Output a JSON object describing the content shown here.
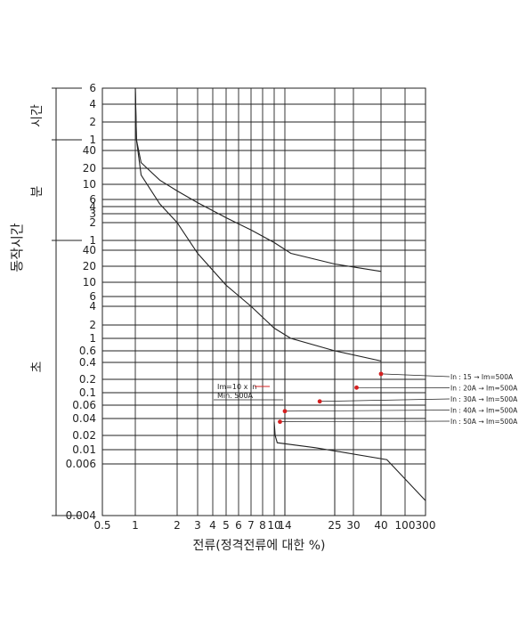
{
  "chart_data": {
    "type": "line",
    "xscale": "log",
    "yscale": "log",
    "xlabel": "전류(정격전류에 대한 %)",
    "ylabel": "동작시간",
    "y_group_labels": [
      "시간",
      "분",
      "초"
    ],
    "x_ticks": [
      "0.5",
      "1",
      "2",
      "3",
      "4",
      "5",
      "6",
      "7",
      "8",
      "10",
      "14",
      "25",
      "30",
      "40",
      "100",
      "300"
    ],
    "y_ticks_hours": [
      "6",
      "4",
      "2",
      "1"
    ],
    "y_ticks_minutes": [
      "40",
      "20",
      "10",
      "6",
      "4",
      "3",
      "2",
      "1"
    ],
    "y_ticks_seconds": [
      "40",
      "20",
      "10",
      "6",
      "4",
      "2",
      "1",
      "0.6",
      "0.4",
      "0.2",
      "0.1",
      "0.06",
      "0.04",
      "0.02",
      "0.01",
      "0.006",
      "0.004"
    ],
    "series": [
      {
        "points": [
          [
            1.0,
            21600
          ],
          [
            1.02,
            3600
          ],
          [
            1.1,
            1500
          ],
          [
            1.5,
            720
          ],
          [
            2,
            480
          ],
          [
            3,
            300
          ],
          [
            5,
            150
          ],
          [
            7,
            90
          ],
          [
            10,
            55
          ],
          [
            15,
            35
          ],
          [
            25,
            22
          ],
          [
            40,
            16
          ]
        ]
      },
      {
        "points": [
          [
            1.0,
            21600
          ],
          [
            1.02,
            3600
          ],
          [
            1.1,
            900
          ],
          [
            1.5,
            280
          ],
          [
            2,
            120
          ],
          [
            3,
            35
          ],
          [
            5,
            9
          ],
          [
            7,
            4
          ],
          [
            10,
            1.7
          ],
          [
            15,
            1.0
          ],
          [
            25,
            0.6
          ],
          [
            40,
            0.42
          ]
        ]
      },
      {
        "points": [
          [
            10,
            0.035
          ],
          [
            10.3,
            0.02
          ],
          [
            11,
            0.014
          ],
          [
            20,
            0.011
          ],
          [
            50,
            0.007
          ],
          [
            300,
            0.0045
          ]
        ]
      }
    ],
    "verticals": [
      {
        "x": 14,
        "y_top": 20
      },
      {
        "x": 25,
        "y_top": 10
      },
      {
        "x": 40,
        "y_top": 7
      }
    ],
    "markers": [
      {
        "x": 40,
        "y": 0.25,
        "label": "In : 15 → Im=500A"
      },
      {
        "x": 31,
        "y": 0.13,
        "label": "In : 20A → Im=500A"
      },
      {
        "x": 21,
        "y": 0.07,
        "label": "In : 30A → Im=500A"
      },
      {
        "x": 14,
        "y": 0.05,
        "label": "In : 40A → Im=500A"
      },
      {
        "x": 12,
        "y": 0.035,
        "label": "In : 50A → Im=500A"
      }
    ],
    "annotation": {
      "line1": "Im=10 x In",
      "line2": "Min. 500A"
    },
    "marker_color": "#d42020",
    "line_color": "#222222"
  }
}
